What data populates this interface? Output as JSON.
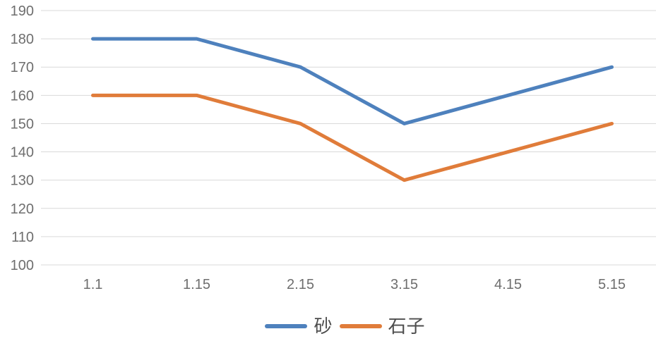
{
  "chart_data": {
    "type": "line",
    "categories": [
      "1.1",
      "1.15",
      "2.15",
      "3.15",
      "4.15",
      "5.15"
    ],
    "series": [
      {
        "name": "砂",
        "color": "#4e81bd",
        "values": [
          180,
          180,
          170,
          150,
          160,
          170
        ]
      },
      {
        "name": "石子",
        "color": "#e07c3a",
        "values": [
          160,
          160,
          150,
          130,
          140,
          150
        ]
      }
    ],
    "yticks": [
      100,
      110,
      120,
      130,
      140,
      150,
      160,
      170,
      180,
      190
    ],
    "ylim": [
      100,
      190
    ],
    "grid": "horizontal",
    "legend_position": "bottom-center"
  },
  "style": {
    "gridline_color": "#d9d9d9",
    "axis_label_color": "#6e6e6e",
    "legend_text_color": "#4d4d4d",
    "background": "#ffffff",
    "line_width": 5
  }
}
